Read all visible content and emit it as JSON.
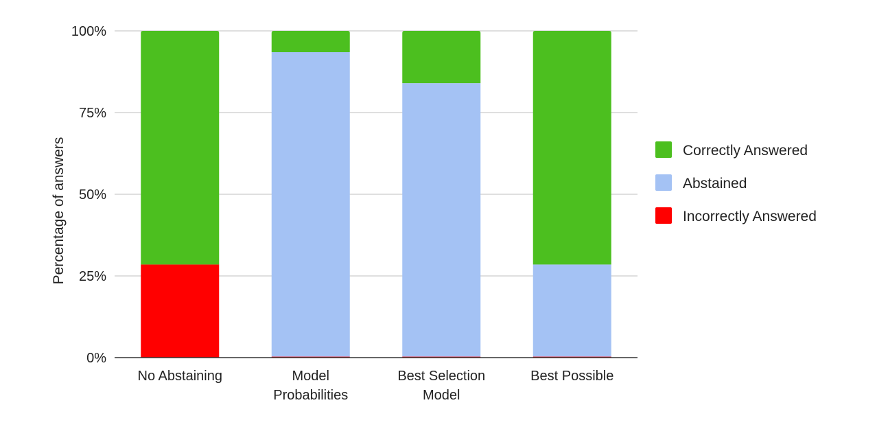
{
  "chart_data": {
    "type": "bar",
    "stacked": true,
    "percent_stacked": true,
    "categories": [
      "No Abstaining",
      "Model Probabilities",
      "Best Selection Model",
      "Best Possible"
    ],
    "category_label_lines": [
      [
        "No Abstaining"
      ],
      [
        "Model",
        "Probabilities"
      ],
      [
        "Best Selection",
        "Model"
      ],
      [
        "Best Possible"
      ]
    ],
    "series": [
      {
        "name": "Incorrectly Answered",
        "color": "#ff0000",
        "values": [
          28.5,
          0.3,
          0.3,
          0.3
        ]
      },
      {
        "name": "Abstained",
        "color": "#a4c2f4",
        "values": [
          0,
          93.2,
          83.7,
          28.2
        ]
      },
      {
        "name": "Correctly Answered",
        "color": "#4cbf1f",
        "values": [
          71.5,
          6.5,
          16.0,
          71.5
        ]
      }
    ],
    "title": "",
    "xlabel": "",
    "ylabel": "Percentage of answers",
    "ylim": [
      0,
      100
    ],
    "yticks": [
      0,
      25,
      50,
      75,
      100
    ],
    "ytick_labels": [
      "0%",
      "25%",
      "50%",
      "75%",
      "100%"
    ],
    "grid": true,
    "legend_position": "right",
    "legend_order": [
      "Correctly Answered",
      "Abstained",
      "Incorrectly Answered"
    ]
  }
}
